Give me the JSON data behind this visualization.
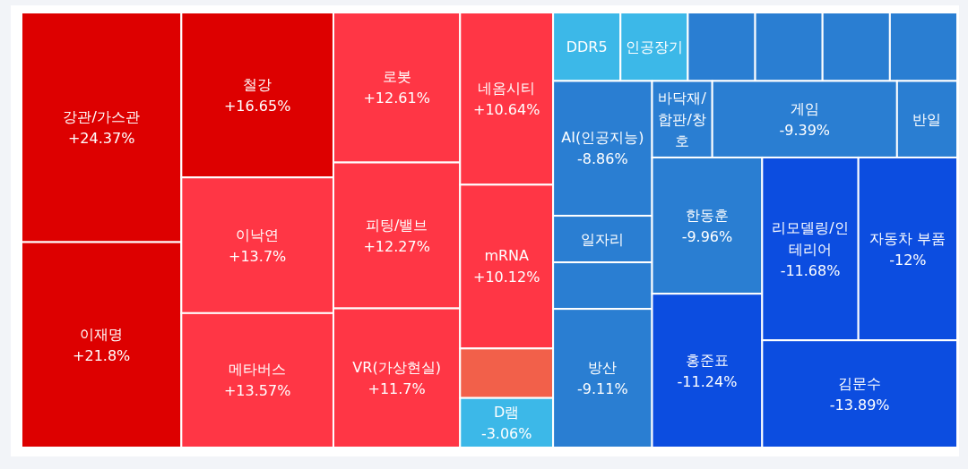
{
  "chart_data": {
    "type": "other",
    "categories": [
      "강관/가스관",
      "이재명",
      "철강",
      "이낙연",
      "메타버스",
      "로봇",
      "피팅/밸브",
      "VR(가상현실)",
      "네옴시티",
      "mRNA",
      null,
      "D램",
      "DDR5",
      "인공장기",
      null,
      null,
      null,
      null,
      "AI(인공지능)",
      "일자리",
      null,
      "방산",
      "바닥재/합판/창호",
      "게임",
      "반일",
      "한동훈",
      "홍준표",
      "리모델링/인테리어",
      "자동차 부품",
      "김문수"
    ],
    "values": [
      24.37,
      21.8,
      16.65,
      13.7,
      13.57,
      12.61,
      12.27,
      11.7,
      10.64,
      10.12,
      null,
      -3.06,
      null,
      null,
      null,
      null,
      null,
      null,
      -8.86,
      null,
      null,
      -9.11,
      null,
      -9.39,
      null,
      -9.96,
      -11.24,
      -11.68,
      -12,
      -13.89
    ],
    "value_labels": [
      "+24.37%",
      "+21.8%",
      "+16.65%",
      "+13.7%",
      "+13.57%",
      "+12.61%",
      "+12.27%",
      "+11.7%",
      "+10.64%",
      "+10.12%",
      null,
      "-3.06%",
      null,
      null,
      null,
      null,
      null,
      null,
      "-8.86%",
      null,
      null,
      "-9.11%",
      null,
      "-9.39%",
      null,
      "-9.96%",
      "-11.24%",
      "-11.68%",
      "-12%",
      "-13.89%"
    ],
    "colors": [
      "#dd0000",
      "#dd0000",
      "#dd0000",
      "#ff3645",
      "#ff3645",
      "#ff3645",
      "#ff3645",
      "#ff3645",
      "#ff3645",
      "#ff3645",
      "#f2604a",
      "#3cb8e8",
      "#3cb8e8",
      "#3cb8e8",
      "#2a7ed2",
      "#2a7ed2",
      "#2a7ed2",
      "#2a7ed2",
      "#2a7ed2",
      "#2a7ed2",
      "#2a7ed2",
      "#2a7ed2",
      "#2a7ed2",
      "#2a7ed2",
      "#2a7ed2",
      "#2a7ed2",
      "#0c4de0",
      "#0c4de0",
      "#0c4de0",
      "#0c4de0"
    ]
  }
}
